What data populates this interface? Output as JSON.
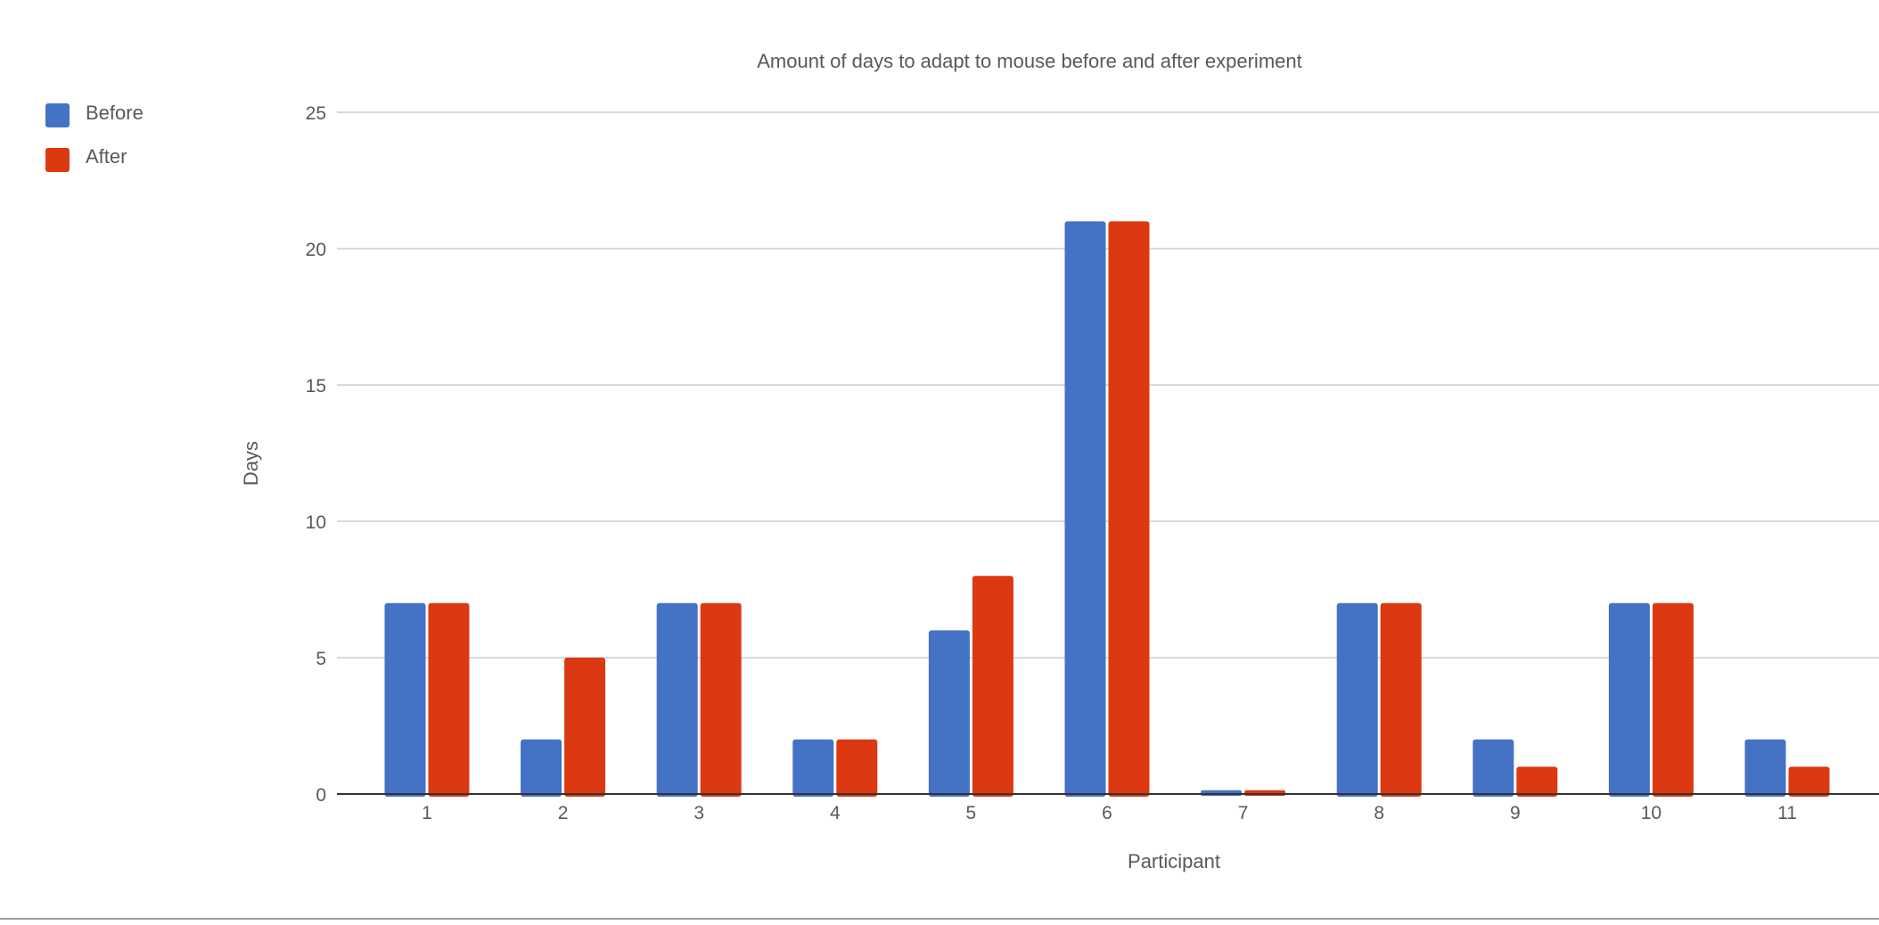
{
  "chart_data": {
    "type": "bar",
    "title": "Amount of days to adapt to mouse before and after experiment",
    "xlabel": "Participant",
    "ylabel": "Days",
    "categories": [
      "1",
      "2",
      "3",
      "4",
      "5",
      "6",
      "7",
      "8",
      "9",
      "10",
      "11"
    ],
    "series": [
      {
        "name": "Before",
        "color": "#4472c4",
        "values": [
          7,
          2,
          7,
          2,
          6,
          21,
          0.14,
          7,
          2,
          7,
          2
        ]
      },
      {
        "name": "After",
        "color": "#dc3912",
        "values": [
          7,
          5,
          7,
          2,
          8,
          21,
          0.14,
          7,
          1,
          7,
          1
        ]
      }
    ],
    "ylim": [
      0,
      25
    ],
    "yticks": [
      "0",
      "5",
      "10",
      "15",
      "20",
      "25"
    ],
    "grid": true,
    "legend_position": "top-left"
  }
}
